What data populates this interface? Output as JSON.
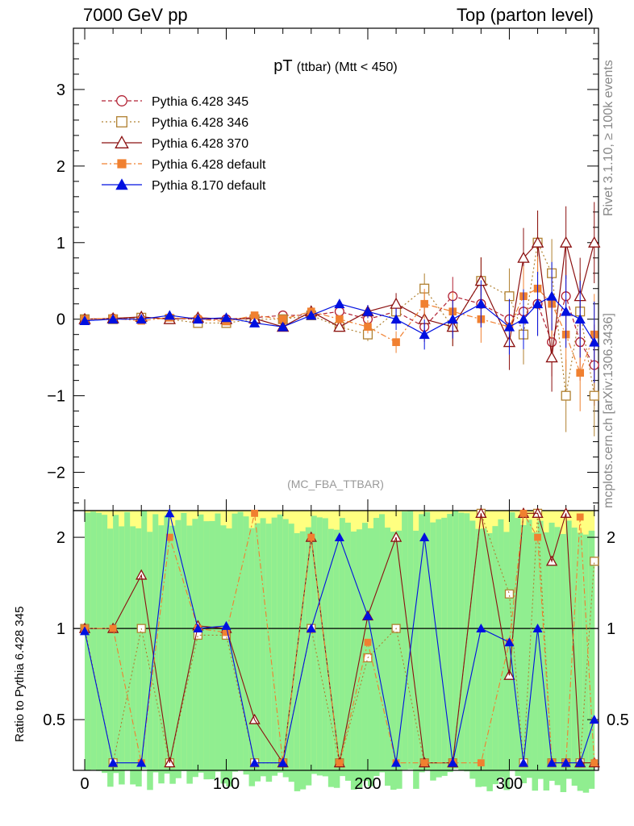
{
  "header": {
    "left": "7000 GeV pp",
    "right": "Top (parton level)"
  },
  "side_text": {
    "rivet": "Rivet 3.1.10, ≥ 100k events",
    "mcplots": "mcplots.cern.ch [arXiv:1306.3436]"
  },
  "ratio_panel": {
    "ylabel": "Ratio to Pythia 6.428 345",
    "yticks": [
      "0.5",
      "1",
      "2"
    ]
  },
  "colors": {
    "p345": "#b22234",
    "p346": "#b08030",
    "p370": "#8b1010",
    "p6def": "#f08030",
    "p8def": "#0010e0",
    "band_green": "#90ee90",
    "band_yellow": "#ffff80"
  },
  "chart_data": {
    "type": "scatter",
    "title": "pT",
    "title_sub": "(ttbar)",
    "title_cut": "(Mtt < 450)",
    "watermark": "(MC_FBA_TTBAR)",
    "xlim": [
      -8,
      363
    ],
    "ylim": [
      -2.5,
      3.8
    ],
    "yticks": [
      "−2",
      "−1",
      "0",
      "1",
      "2",
      "3"
    ],
    "xticks": [
      "0",
      "100",
      "200",
      "300"
    ],
    "x": [
      0,
      20,
      40,
      60,
      80,
      100,
      120,
      140,
      160,
      180,
      200,
      220,
      240,
      260,
      280,
      300,
      310,
      320,
      330,
      340,
      350,
      360
    ],
    "series": [
      {
        "name": "Pythia 6.428 345",
        "marker": "circle-open",
        "line": "dashed",
        "values": [
          0,
          0.01,
          0.02,
          0.01,
          0,
          0,
          0.02,
          0.05,
          0.05,
          0.1,
          0,
          0.1,
          -0.1,
          0.3,
          0.2,
          0,
          0.1,
          0.2,
          -0.3,
          0.3,
          -0.3,
          -0.6
        ]
      },
      {
        "name": "Pythia 6.428 346",
        "marker": "square-open",
        "line": "dotted",
        "values": [
          0,
          0,
          0.02,
          0,
          -0.05,
          -0.05,
          0,
          0,
          0.05,
          -0.1,
          -0.2,
          0.1,
          0.4,
          -0.1,
          0.5,
          0.3,
          -0.2,
          1.0,
          0.6,
          -1.0,
          0.1,
          -1.0
        ]
      },
      {
        "name": "Pythia 6.428 370",
        "marker": "triangle-open",
        "line": "solid",
        "values": [
          0,
          0.01,
          0.03,
          0,
          0.02,
          0,
          0.01,
          -0.1,
          0.1,
          -0.1,
          0.1,
          0.2,
          0,
          -0.1,
          0.5,
          -0.3,
          0.8,
          1.0,
          -0.5,
          1.0,
          0.3,
          1.0
        ]
      },
      {
        "name": "Pythia 6.428 default",
        "marker": "square-filled",
        "line": "dashdot",
        "values": [
          0,
          0.01,
          -0.02,
          0.02,
          0,
          -0.03,
          0.05,
          0,
          0.1,
          0,
          -0.1,
          -0.3,
          0.2,
          0.1,
          0,
          -0.1,
          0.3,
          0.4,
          0.2,
          -0.2,
          -0.7,
          -0.2
        ]
      },
      {
        "name": "Pythia 8.170 default",
        "marker": "triangle-filled",
        "line": "solid",
        "values": [
          -0.02,
          0,
          0,
          0.05,
          0,
          0.02,
          -0.05,
          -0.1,
          0.05,
          0.2,
          0.1,
          0,
          -0.2,
          0,
          0.2,
          -0.1,
          0,
          0.2,
          0.3,
          0.1,
          0,
          -0.3
        ]
      }
    ]
  }
}
